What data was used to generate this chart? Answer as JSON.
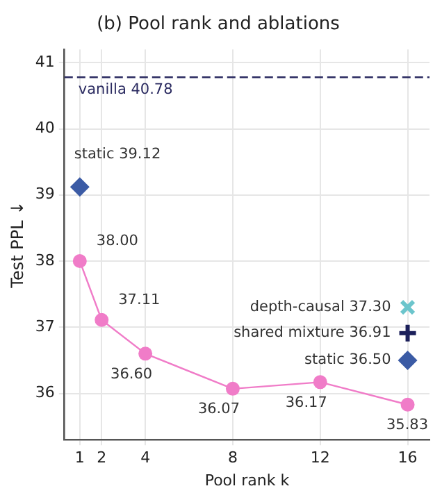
{
  "chart_data": {
    "type": "line",
    "title": "(b) Pool rank and ablations",
    "xlabel": "Pool rank k",
    "ylabel": "Test PPL ↓",
    "xlim": [
      0.3,
      17
    ],
    "xticks": [
      1,
      2,
      4,
      8,
      12,
      16
    ],
    "ylim": [
      35.3,
      41.2
    ],
    "yticks": [
      36,
      37,
      38,
      39,
      40,
      41
    ],
    "grid": true,
    "legend": false,
    "series": [
      {
        "marker": "circle",
        "color": "#f07cc8",
        "x": [
          1,
          2,
          4,
          8,
          12,
          16
        ],
        "values": [
          38.0,
          37.11,
          36.6,
          36.07,
          36.17,
          35.83
        ],
        "value_labels": [
          "38.00",
          "37.11",
          "36.60",
          "36.07",
          "36.17",
          "35.83"
        ]
      },
      {
        "type": "scatter",
        "marker": "diamond",
        "color": "#3b5ba5",
        "x": [
          1,
          16
        ],
        "values": [
          39.12,
          36.5
        ],
        "value_labels": [
          "static 39.12",
          "static 36.50"
        ]
      },
      {
        "type": "scatter",
        "marker": "cross",
        "color": "#6cc5cc",
        "x": [
          16
        ],
        "values": [
          37.3
        ],
        "value_labels": [
          "depth-causal 37.30"
        ]
      },
      {
        "type": "scatter",
        "marker": "plus",
        "color": "#1b1f5a",
        "x": [
          16
        ],
        "values": [
          36.91
        ],
        "value_labels": [
          "shared mixture 36.91"
        ]
      }
    ],
    "ref_lines": [
      {
        "axis": "y",
        "value": 40.78,
        "label": "vanilla 40.78",
        "color": "#2a2a60",
        "line_style": "dashed"
      }
    ]
  }
}
